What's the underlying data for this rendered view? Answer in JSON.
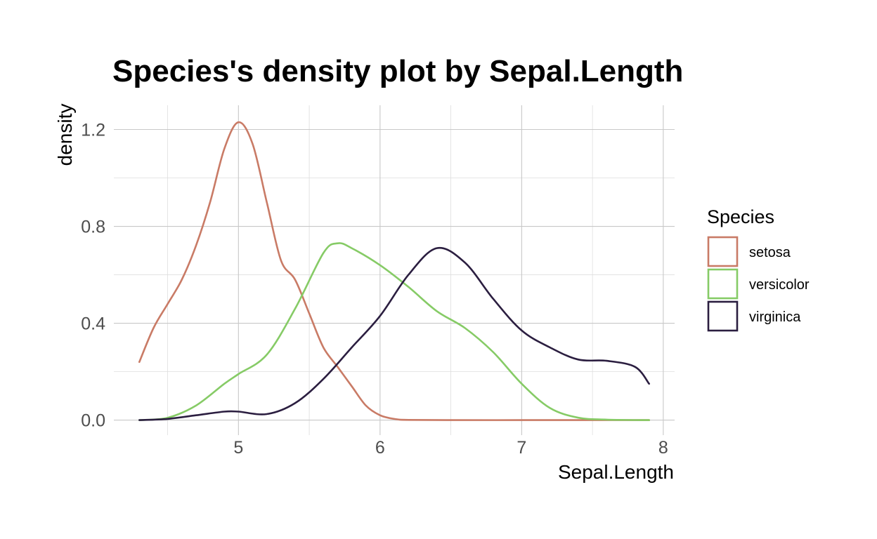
{
  "chart_data": {
    "type": "line",
    "title": "Species's density plot by Sepal.Length",
    "xlabel": "Sepal.Length",
    "ylabel": "density",
    "xlim": [
      4.3,
      7.9
    ],
    "ylim": [
      0,
      1.24
    ],
    "x_ticks": [
      5,
      6,
      7,
      8
    ],
    "x_tick_labels": [
      "5",
      "6",
      "7",
      "8"
    ],
    "y_ticks": [
      0.0,
      0.4,
      0.8,
      1.2
    ],
    "y_tick_labels": [
      "0.0",
      "0.4",
      "0.8",
      "1.2"
    ],
    "grid": true,
    "legend": {
      "title": "Species",
      "placement": "right"
    },
    "series": [
      {
        "name": "setosa",
        "color": "#C97B66",
        "x": [
          4.3,
          4.4,
          4.5,
          4.6,
          4.7,
          4.8,
          4.9,
          5.0,
          5.1,
          5.2,
          5.3,
          5.4,
          5.5,
          5.6,
          5.7,
          5.8,
          5.9,
          6.0,
          6.1,
          6.2,
          6.5,
          7.0,
          7.5,
          7.9
        ],
        "y": [
          0.24,
          0.38,
          0.48,
          0.58,
          0.72,
          0.9,
          1.12,
          1.23,
          1.14,
          0.9,
          0.66,
          0.58,
          0.44,
          0.3,
          0.22,
          0.14,
          0.06,
          0.02,
          0.005,
          0.001,
          0.0,
          0.0,
          0.0,
          0.0
        ]
      },
      {
        "name": "versicolor",
        "color": "#86CB66",
        "x": [
          4.3,
          4.5,
          4.7,
          4.9,
          5.0,
          5.2,
          5.4,
          5.6,
          5.7,
          5.8,
          6.0,
          6.2,
          6.4,
          6.6,
          6.8,
          7.0,
          7.2,
          7.4,
          7.6,
          7.9
        ],
        "y": [
          0.0,
          0.01,
          0.06,
          0.15,
          0.19,
          0.27,
          0.46,
          0.69,
          0.73,
          0.71,
          0.64,
          0.55,
          0.45,
          0.38,
          0.28,
          0.15,
          0.05,
          0.01,
          0.002,
          0.0
        ]
      },
      {
        "name": "virginica",
        "color": "#2B1E40",
        "x": [
          4.3,
          4.5,
          4.7,
          4.9,
          5.0,
          5.2,
          5.4,
          5.6,
          5.8,
          6.0,
          6.2,
          6.4,
          6.6,
          6.8,
          7.0,
          7.2,
          7.4,
          7.6,
          7.8,
          7.9
        ],
        "y": [
          0.0,
          0.005,
          0.02,
          0.035,
          0.035,
          0.025,
          0.07,
          0.17,
          0.3,
          0.43,
          0.6,
          0.71,
          0.65,
          0.5,
          0.37,
          0.3,
          0.25,
          0.245,
          0.22,
          0.15
        ]
      }
    ]
  }
}
